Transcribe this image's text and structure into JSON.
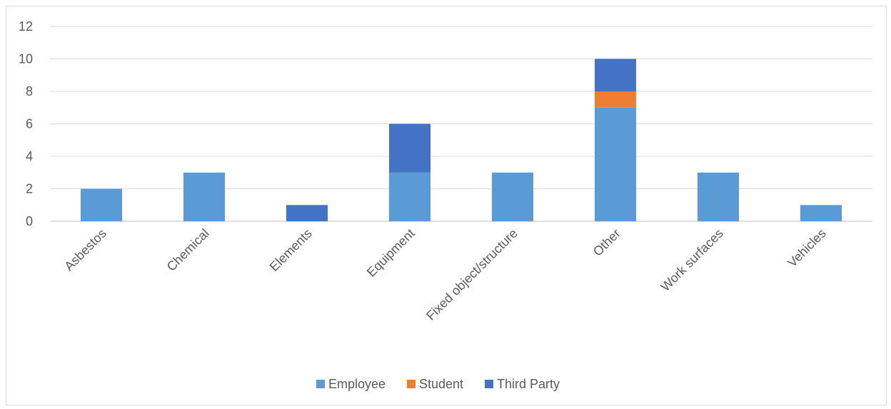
{
  "chart_data": {
    "type": "bar",
    "stacked": true,
    "title": "",
    "xlabel": "",
    "ylabel": "",
    "ylim": [
      0,
      12
    ],
    "yticks": [
      0,
      2,
      4,
      6,
      8,
      10,
      12
    ],
    "grid": true,
    "legend_position": "bottom",
    "categories": [
      "Asbestos",
      "Chemical",
      "Elements",
      "Equipment",
      "Fixed object/structure",
      "Other",
      "Work surfaces",
      "Vehicles"
    ],
    "series": [
      {
        "name": "Employee",
        "color": "#5b9bd5",
        "values": [
          2,
          3,
          0,
          3,
          3,
          7,
          3,
          1
        ]
      },
      {
        "name": "Student",
        "color": "#ed7d31",
        "values": [
          0,
          0,
          0,
          0,
          0,
          1,
          0,
          0
        ]
      },
      {
        "name": "Third Party",
        "color": "#4472c4",
        "values": [
          0,
          0,
          1,
          3,
          0,
          2,
          0,
          0
        ]
      }
    ]
  }
}
